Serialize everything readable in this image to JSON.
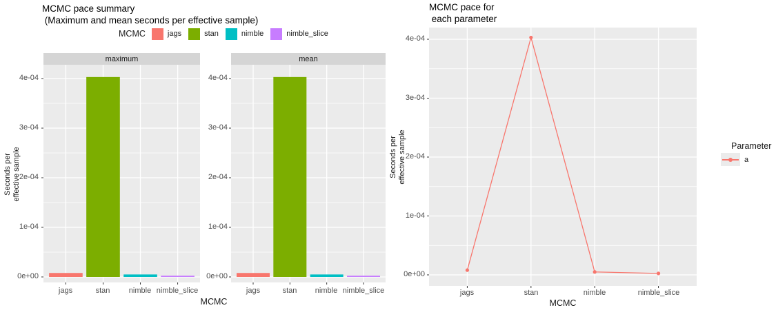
{
  "theme": {
    "panel_bg": "#EBEBEB",
    "strip_bg": "#D5D5D5",
    "grid_color": "#FFFFFF",
    "tick_color": "#333333"
  },
  "chart_data": [
    {
      "type": "bar",
      "title": "MCMC pace summary\n (Maximum and mean seconds per effective sample)",
      "facets": [
        "maximum",
        "mean"
      ],
      "categories": [
        "jags",
        "stan",
        "nimble",
        "nimble_slice"
      ],
      "series": [
        {
          "name": "maximum",
          "values": [
            8e-06,
            0.000403,
            5e-06,
            2.5e-06
          ]
        },
        {
          "name": "mean",
          "values": [
            8e-06,
            0.000403,
            5e-06,
            2.5e-06
          ]
        }
      ],
      "colors": [
        "#F8766D",
        "#7CAE00",
        "#00BFC4",
        "#C77CFF"
      ],
      "legend_title": "MCMC",
      "legend_position": "top",
      "xlabel": "MCMC",
      "ylabel": "Seconds per\neffective sample",
      "ylim": [
        0,
        0.00042
      ],
      "yticks": [
        0,
        0.0001,
        0.0002,
        0.0003,
        0.0004
      ],
      "ytick_labels": [
        "0e+00",
        "1e-04",
        "2e-04",
        "3e-04",
        "4e-04"
      ],
      "grid": true
    },
    {
      "type": "line",
      "title": "MCMC pace for\n each parameter",
      "categories": [
        "jags",
        "stan",
        "nimble",
        "nimble_slice"
      ],
      "series": [
        {
          "name": "a",
          "values": [
            8e-06,
            0.000403,
            5e-06,
            2.5e-06
          ],
          "color": "#F8766D"
        }
      ],
      "legend_title": "Parameter",
      "legend_position": "right",
      "xlabel": "MCMC",
      "ylabel": "Seconds per\neffective sample",
      "ylim": [
        0,
        0.00042
      ],
      "yticks": [
        0,
        0.0001,
        0.0002,
        0.0003,
        0.0004
      ],
      "ytick_labels": [
        "0e+00",
        "1e-04",
        "2e-04",
        "3e-04",
        "4e-04"
      ],
      "grid": true
    }
  ]
}
